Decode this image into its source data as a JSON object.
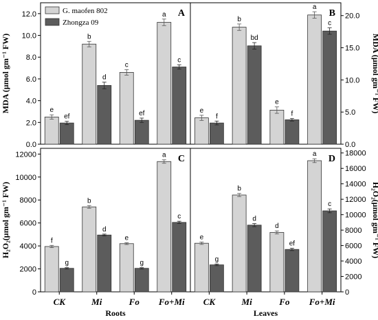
{
  "chart_data": [
    {
      "panel": "A",
      "type": "bar",
      "categories": [
        "CK",
        "Mi",
        "Fo",
        "Fo+Mi"
      ],
      "ylabel": "MDA (µmol gm⁻¹ FW)",
      "ylim": [
        0,
        13
      ],
      "yticks": [
        "0.0",
        "2.0",
        "4.0",
        "6.0",
        "8.0",
        "10.0",
        "12.0"
      ],
      "ytick_values": [
        0,
        2,
        4,
        6,
        8,
        10,
        12
      ],
      "series": [
        {
          "name": "G. maofen 802",
          "values": [
            2.5,
            9.2,
            6.6,
            11.2
          ],
          "errors": [
            0.2,
            0.25,
            0.25,
            0.3
          ],
          "letters": [
            "e",
            "b",
            "c",
            "a"
          ]
        },
        {
          "name": "Zhongza 09",
          "values": [
            1.95,
            5.4,
            2.2,
            7.1
          ],
          "errors": [
            0.15,
            0.3,
            0.2,
            0.2
          ],
          "letters": [
            "ef",
            "d",
            "ef",
            "c"
          ]
        }
      ]
    },
    {
      "panel": "B",
      "type": "bar",
      "categories": [
        "CK",
        "Mi",
        "Fo",
        "Fo+Mi"
      ],
      "ylabel": "MDA (µmol gm⁻¹ FW)",
      "ylim": [
        0,
        22
      ],
      "yticks": [
        "0.0",
        "5.0",
        "10.0",
        "15.0",
        "20.0"
      ],
      "ytick_values": [
        0,
        5,
        10,
        15,
        20
      ],
      "series": [
        {
          "name": "G. maofen 802",
          "values": [
            4.1,
            18.2,
            5.3,
            20.1
          ],
          "errors": [
            0.4,
            0.5,
            0.5,
            0.5
          ],
          "letters": [
            "e",
            "b",
            "e",
            "a"
          ]
        },
        {
          "name": "Zhongza 09",
          "values": [
            3.3,
            15.3,
            3.8,
            17.6
          ],
          "errors": [
            0.3,
            0.5,
            0.2,
            0.5
          ],
          "letters": [
            "f",
            "bd",
            "f",
            "c"
          ]
        }
      ]
    },
    {
      "panel": "C",
      "type": "bar",
      "categories": [
        "CK",
        "Mi",
        "Fo",
        "Fo+Mi"
      ],
      "ylabel": "H₂O₂(µmol gm⁻¹ FW)",
      "xlabel": "Roots",
      "ylim": [
        0,
        12500
      ],
      "yticks": [
        "0",
        "2000",
        "4000",
        "6000",
        "8000",
        "10000",
        "12000"
      ],
      "ytick_values": [
        0,
        2000,
        4000,
        6000,
        8000,
        10000,
        12000
      ],
      "series": [
        {
          "name": "G. maofen 802",
          "values": [
            3950,
            7400,
            4200,
            11350
          ],
          "errors": [
            100,
            120,
            80,
            150
          ],
          "letters": [
            "f",
            "b",
            "e",
            "a"
          ]
        },
        {
          "name": "Zhongza 09",
          "values": [
            2050,
            4950,
            2050,
            6050
          ],
          "errors": [
            60,
            80,
            60,
            100
          ],
          "letters": [
            "g",
            "d",
            "g",
            "c"
          ]
        }
      ]
    },
    {
      "panel": "D",
      "type": "bar",
      "categories": [
        "CK",
        "Mi",
        "Fo",
        "Fo+Mi"
      ],
      "ylabel": "H₂O₂(µmol gm⁻¹ FW)",
      "xlabel": "Leaves",
      "ylim": [
        0,
        18600
      ],
      "yticks": [
        "0",
        "2000",
        "4000",
        "6000",
        "8000",
        "10000",
        "12000",
        "14000",
        "16000",
        "18000"
      ],
      "ytick_values": [
        0,
        2000,
        4000,
        6000,
        8000,
        10000,
        12000,
        14000,
        16000,
        18000
      ],
      "series": [
        {
          "name": "G. maofen 802",
          "values": [
            6300,
            12550,
            7700,
            17000
          ],
          "errors": [
            150,
            200,
            200,
            250
          ],
          "letters": [
            "e",
            "b",
            "d",
            "a"
          ]
        },
        {
          "name": "Zhongza 09",
          "values": [
            3500,
            8650,
            5500,
            10500
          ],
          "errors": [
            100,
            200,
            150,
            250
          ],
          "letters": [
            "g",
            "d",
            "ef",
            "c"
          ]
        }
      ]
    }
  ],
  "legend": {
    "position": "top-left of panel A"
  },
  "colors": {
    "series1": "#d4d4d4",
    "series2": "#5c5c5c",
    "axis": "#000000"
  }
}
